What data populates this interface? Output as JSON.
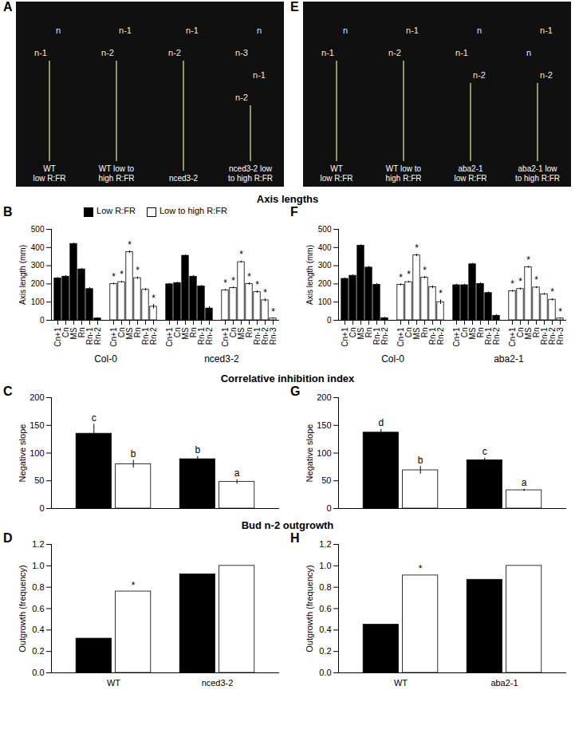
{
  "photos": [
    {
      "panel": "A",
      "plants": [
        {
          "caption": [
            "WT",
            "low R:FR"
          ],
          "markers": [
            "n",
            "n-1"
          ]
        },
        {
          "caption": [
            "WT low to",
            "high R:FR"
          ],
          "markers": [
            "n-1",
            "n-2"
          ]
        },
        {
          "caption": [
            "nced3-2"
          ],
          "markers": [
            "n-1",
            "n-2"
          ]
        },
        {
          "caption": [
            "nced3-2 low",
            "to high R:FR"
          ],
          "markers": [
            "n",
            "n-3",
            "n-1",
            "n-2"
          ]
        }
      ]
    },
    {
      "panel": "E",
      "plants": [
        {
          "caption": [
            "WT",
            "low R:FR"
          ],
          "markers": [
            "n",
            "n-1"
          ]
        },
        {
          "caption": [
            "WT low to",
            "high R:FR"
          ],
          "markers": [
            "n-1",
            "n-2"
          ]
        },
        {
          "caption": [
            "aba2-1",
            "low R:FR"
          ],
          "markers": [
            "n",
            "n-1",
            "n-2"
          ]
        },
        {
          "caption": [
            "aba2-1 low",
            "to high R:FR"
          ],
          "markers": [
            "n-1",
            "n",
            "n-2"
          ]
        }
      ]
    }
  ],
  "section_titles": [
    "Axis lengths",
    "Correlative inhibition index",
    "Bud n-2 outgrowth"
  ],
  "chart_data": [
    {
      "type": "bar",
      "panel": "B",
      "ylabel": "Axis length (mm)",
      "ylim": [
        0,
        500
      ],
      "yticks": [
        0,
        100,
        200,
        300,
        400,
        500
      ],
      "legend": "top",
      "series": [
        {
          "name": "Low R:FR",
          "color": "#000000"
        },
        {
          "name": "Low to high R:FR",
          "color": "#ffffff"
        }
      ],
      "groups": [
        {
          "genotype": "Col-0",
          "color": "#000000",
          "categories": [
            "Cn+1",
            "Cn",
            "MS",
            "Rn",
            "Rn-1",
            "Rn-2"
          ],
          "values": [
            230,
            240,
            420,
            280,
            172,
            10
          ],
          "errors": [
            5,
            6,
            5,
            6,
            8,
            4
          ],
          "labels": [
            null,
            null,
            null,
            null,
            null,
            null
          ]
        },
        {
          "genotype": "Col-0",
          "color": "#ffffff",
          "categories": [
            "Cn+1",
            "Cn",
            "MS",
            "Rn",
            "Rn-1",
            "Rn-2"
          ],
          "values": [
            200,
            210,
            375,
            232,
            168,
            75
          ],
          "errors": [
            5,
            5,
            6,
            6,
            7,
            12
          ],
          "labels": [
            "*",
            "*",
            "*",
            "*",
            null,
            "*"
          ]
        },
        {
          "genotype": "nced3-2",
          "color": "#000000",
          "categories": [
            "Cn+1",
            "Cn",
            "MS",
            "Rn",
            "Rn-1",
            "Rn-2"
          ],
          "values": [
            198,
            205,
            355,
            240,
            186,
            65
          ],
          "errors": [
            5,
            5,
            4,
            5,
            6,
            10
          ],
          "labels": [
            null,
            null,
            null,
            null,
            null,
            null
          ]
        },
        {
          "genotype": "nced3-2",
          "color": "#ffffff",
          "categories": [
            "Cn+1",
            "Cn",
            "MS",
            "Rn",
            "Rn-1",
            "Rn-2",
            "Rn-3"
          ],
          "values": [
            165,
            178,
            320,
            200,
            155,
            110,
            10
          ],
          "errors": [
            5,
            5,
            5,
            6,
            6,
            8,
            3
          ],
          "labels": [
            "*",
            "*",
            "*",
            "*",
            "*",
            "*",
            "*"
          ]
        }
      ]
    },
    {
      "type": "bar",
      "panel": "F",
      "ylabel": "Axis length (mm)",
      "ylim": [
        0,
        500
      ],
      "yticks": [
        0,
        100,
        200,
        300,
        400,
        500
      ],
      "groups": [
        {
          "genotype": "Col-0",
          "color": "#000000",
          "categories": [
            "Cn+1",
            "Cn",
            "MS",
            "Rn",
            "Rn-1",
            "Rn-2"
          ],
          "values": [
            228,
            245,
            410,
            290,
            195,
            12
          ],
          "errors": [
            5,
            5,
            5,
            6,
            7,
            4
          ],
          "labels": [
            null,
            null,
            null,
            null,
            null,
            null
          ]
        },
        {
          "genotype": "Col-0",
          "color": "#ffffff",
          "categories": [
            "Cn+1",
            "Cn",
            "MS",
            "Rn",
            "Rn-1",
            "Rn-2"
          ],
          "values": [
            195,
            210,
            357,
            235,
            182,
            100
          ],
          "errors": [
            5,
            5,
            6,
            6,
            7,
            12
          ],
          "labels": [
            "*",
            "*",
            "*",
            "*",
            null,
            "*"
          ]
        },
        {
          "genotype": "aba2-1",
          "color": "#000000",
          "categories": [
            "Cn+1",
            "Cn",
            "MS",
            "Rn",
            "Rn-1",
            "Rn-2"
          ],
          "values": [
            193,
            193,
            308,
            200,
            150,
            25
          ],
          "errors": [
            5,
            5,
            5,
            6,
            6,
            6
          ],
          "labels": [
            null,
            null,
            null,
            null,
            null,
            null
          ]
        },
        {
          "genotype": "aba2-1",
          "color": "#ffffff",
          "categories": [
            "Cn+1",
            "Cn",
            "MS",
            "Rn",
            "Rn-1",
            "Rn-2",
            "Rn-3"
          ],
          "values": [
            160,
            172,
            292,
            180,
            143,
            113,
            10
          ],
          "errors": [
            5,
            5,
            5,
            5,
            5,
            6,
            3
          ],
          "labels": [
            "*",
            "*",
            "*",
            "*",
            null,
            "*",
            "*"
          ]
        }
      ]
    },
    {
      "type": "bar",
      "panel": "C",
      "ylabel": "Negative slope",
      "ylim": [
        0,
        200
      ],
      "yticks": [
        0,
        50,
        100,
        150,
        200
      ],
      "tick_labels": "y",
      "categories": [
        null,
        null
      ],
      "series": [
        {
          "color": "#000000",
          "values": [
            135,
            89
          ],
          "errors": [
            17,
            5
          ],
          "labels": [
            "c",
            "b"
          ]
        },
        {
          "color": "#ffffff",
          "values": [
            80,
            48
          ],
          "errors": [
            7,
            4
          ],
          "labels": [
            "b",
            "a"
          ]
        }
      ]
    },
    {
      "type": "bar",
      "panel": "G",
      "ylabel": "Negative slope",
      "ylim": [
        0,
        200
      ],
      "yticks": [
        0,
        50,
        100,
        150,
        200
      ],
      "tick_labels": "y",
      "categories": [
        null,
        null
      ],
      "series": [
        {
          "color": "#000000",
          "values": [
            137,
            87
          ],
          "errors": [
            6,
            4
          ],
          "labels": [
            "d",
            "c"
          ]
        },
        {
          "color": "#ffffff",
          "values": [
            69,
            33
          ],
          "errors": [
            7,
            2
          ],
          "labels": [
            "b",
            "a"
          ]
        }
      ]
    },
    {
      "type": "bar",
      "panel": "D",
      "ylabel": "Outgrowth (frequency)",
      "ylim": [
        0,
        1.2
      ],
      "yticks": [
        0,
        0.2,
        0.4,
        0.6,
        0.8,
        1,
        1.2
      ],
      "categories": [
        "WT",
        "nced3-2"
      ],
      "series": [
        {
          "color": "#000000",
          "values": [
            0.32,
            0.92
          ],
          "labels": [
            null,
            null
          ]
        },
        {
          "color": "#ffffff",
          "values": [
            0.76,
            1.0
          ],
          "labels": [
            "*",
            null
          ]
        }
      ]
    },
    {
      "type": "bar",
      "panel": "H",
      "ylabel": "Outgrowth (frequency)",
      "ylim": [
        0,
        1.2
      ],
      "yticks": [
        0,
        0.2,
        0.4,
        0.6,
        0.8,
        1,
        1.2
      ],
      "categories": [
        "WT",
        "aba2-1"
      ],
      "series": [
        {
          "color": "#000000",
          "values": [
            0.45,
            0.87
          ],
          "labels": [
            null,
            null
          ]
        },
        {
          "color": "#ffffff",
          "values": [
            0.91,
            1.0
          ],
          "labels": [
            "*",
            null
          ]
        }
      ]
    }
  ]
}
